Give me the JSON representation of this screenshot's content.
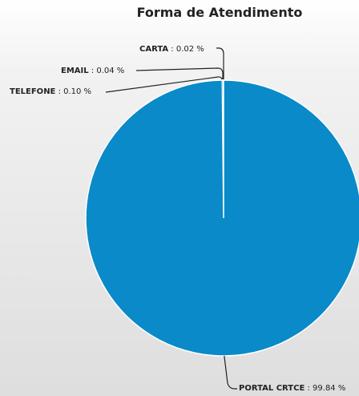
{
  "chart_data": {
    "type": "pie",
    "title": "Forma de Atendimento",
    "slices": [
      {
        "label": "PORTAL CRTCE",
        "value": 99.84,
        "display": "99.84 %"
      },
      {
        "label": "TELEFONE",
        "value": 0.1,
        "display": "0.10 %"
      },
      {
        "label": "EMAIL",
        "value": 0.04,
        "display": "0.04 %"
      },
      {
        "label": "CARTA",
        "value": 0.02,
        "display": "0.02 %"
      }
    ],
    "colors": {
      "primary_slice": "#0a8ac8",
      "slice_border": "#ffffff",
      "connector": "#222222"
    },
    "label_separator": " : "
  }
}
